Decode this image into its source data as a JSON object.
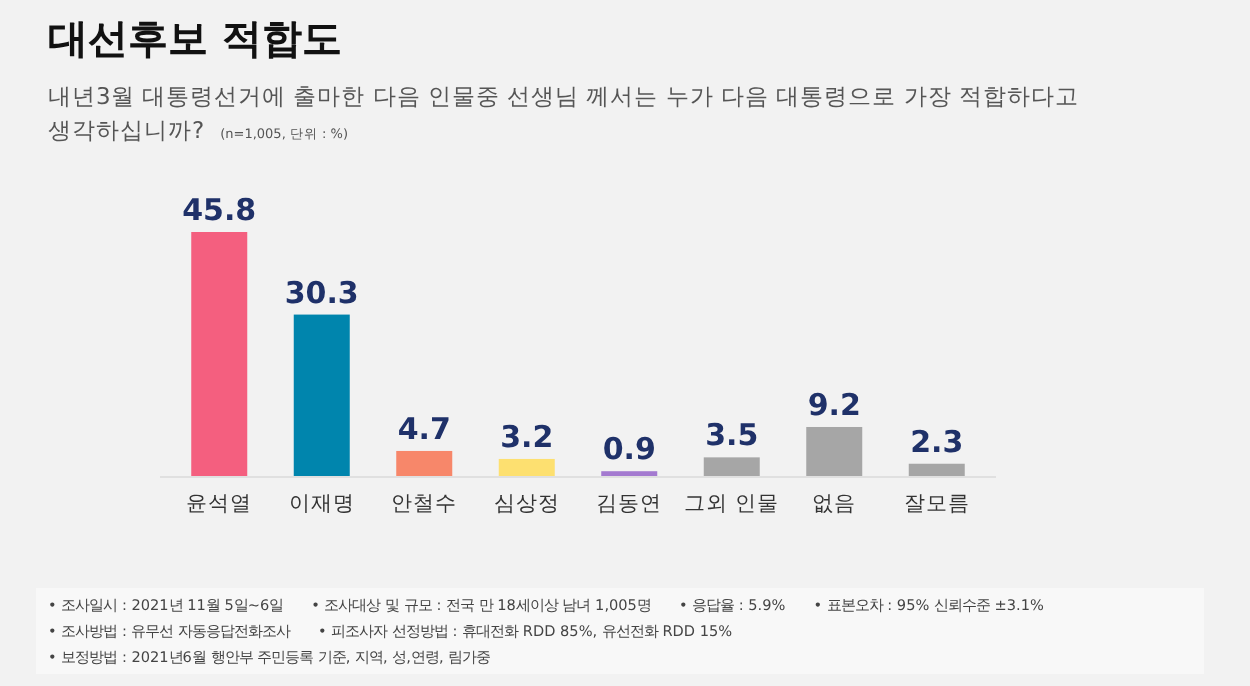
{
  "chart_data": {
    "type": "bar",
    "title": "대선후보 적합도",
    "subtitle": "내년3월 대통령선거에 출마한 다음 인물중 선생님 께서는 누가 다음 대통령으로 가장 적합하다고 생각하십니까?",
    "categories": [
      "윤석열",
      "이재명",
      "안철수",
      "심상정",
      "김동연",
      "그외 인물",
      "없음",
      "잘모름"
    ],
    "values": [
      45.8,
      30.3,
      4.7,
      3.2,
      0.9,
      3.5,
      9.2,
      2.3
    ],
    "colors": [
      "#f45f7f",
      "#0085ad",
      "#f7876a",
      "#fde070",
      "#a47ad0",
      "#a6a6a6",
      "#a6a6a6",
      "#a6a6a6"
    ],
    "data_labels": true,
    "annotations": [
      "(n=1,005, 단위 : %)",
      "• 조사일시 : 2021년 11월 5일~6일",
      "• 조사대상 및 규모 : 전국 만 18세이상  남녀  1,005명",
      "• 응답율 :  5.9%",
      "• 표본오차 : 95% 신뢰수준 ±3.1%",
      "• 조사방법 : 유무선 자동응답전화조사",
      "• 피조사자 선정방법 : 휴대전화 RDD  85%, 유선전화 RDD  15%",
      "• 보정방법 : 2021년6월  행안부 주민등록 기준,  지역, 성,연령, 림가중"
    ]
  }
}
